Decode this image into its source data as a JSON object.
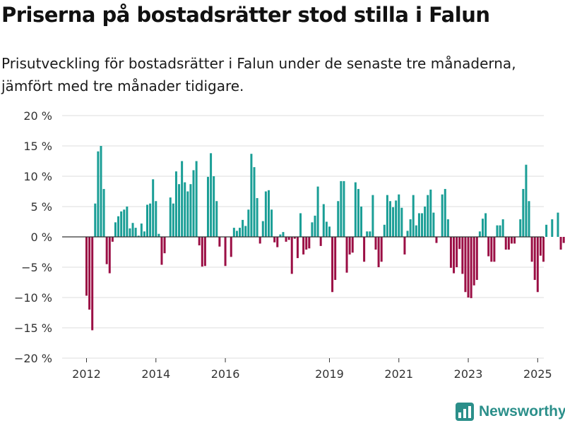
{
  "header": {
    "title": "Priserna på bostadsrätter stod stilla i Falun",
    "subtitle": "Prisutveckling för bostadsrätter i Falun under de senaste tre månaderna, jämfört med tre månader tidigare."
  },
  "brand": {
    "name": "Newsworthy",
    "icon": "newsworthy-logo-icon",
    "color": "#2b8f8a"
  },
  "colors": {
    "positive": "#1a9e96",
    "negative": "#9b0f45",
    "grid": "#dddddd",
    "zero_line": "#333333"
  },
  "chart_data": {
    "type": "bar",
    "title": "Priserna på bostadsrätter stod stilla i Falun",
    "xlabel": "",
    "ylabel": "",
    "ylim": [
      -20,
      20
    ],
    "y_ticks": [
      20,
      15,
      10,
      5,
      0,
      -5,
      -10,
      -15,
      -20
    ],
    "y_tick_labels": [
      "20 %",
      "15 %",
      "10 %",
      "5 %",
      "0 %",
      "−5 %",
      "−10 %",
      "−15 %",
      "−20 %"
    ],
    "x_tick_labels": [
      "2012",
      "2014",
      "2016",
      "2019",
      "2021",
      "2023",
      "2025"
    ],
    "x_tick_years": [
      2012,
      2014,
      2016,
      2019,
      2021,
      2023,
      2025
    ],
    "start": "2012-01",
    "frequency": "monthly",
    "annotation": {
      "label": "0 %",
      "value": 0
    },
    "values": [
      -9.7,
      -12,
      -15.4,
      5.5,
      14.1,
      15,
      7.9,
      -4.5,
      -6,
      -0.8,
      2.4,
      3.4,
      4.2,
      4.5,
      5,
      1.4,
      2.3,
      1.5,
      0.2,
      2.2,
      0.9,
      5.3,
      5.5,
      9.5,
      5.9,
      0.5,
      -4.6,
      -2.7,
      0,
      6.5,
      5.5,
      10.8,
      8.7,
      12.5,
      9,
      7.5,
      8.7,
      11,
      12.5,
      -1.4,
      -4.9,
      -4.8,
      9.9,
      13.8,
      10,
      5.9,
      -1.6,
      0,
      -4.8,
      0,
      -3.3,
      1.5,
      1,
      1.5,
      2.8,
      1.8,
      4.5,
      13.7,
      11.5,
      6.4,
      -1.1,
      2.6,
      7.5,
      7.7,
      4.5,
      -0.9,
      -1.7,
      0.4,
      0.8,
      -0.8,
      -0.5,
      -6.1,
      -0.3,
      -3.5,
      3.9,
      -2.9,
      -2.1,
      -1.9,
      2.4,
      3.5,
      8.3,
      -1.5,
      5.4,
      2.5,
      1.7,
      -9.1,
      -7.1,
      5.9,
      9.2,
      9.2,
      -5.9,
      -2.9,
      -2.6,
      9,
      7.9,
      5,
      -4.1,
      0.9,
      0.9,
      6.9,
      -2.1,
      -5,
      -4.1,
      2,
      6.9,
      5.9,
      4.9,
      6,
      7,
      4.8,
      -2.9,
      1,
      2.9,
      6.9,
      1.9,
      3.9,
      3.9,
      5,
      6.9,
      7.8,
      4,
      -1,
      0,
      7,
      7.9,
      2.9,
      -5.1,
      -6,
      -5,
      -2,
      -6.1,
      -9.1,
      -10,
      -10.1,
      -8,
      -7.1,
      0.9,
      3,
      3.9,
      -3.2,
      -4.1,
      -4.1,
      1.9,
      1.9,
      2.9,
      -2.1,
      -2.1,
      -1.1,
      -1.1,
      0,
      2.9,
      7.9,
      11.9,
      5.9,
      -4.1,
      -7.1,
      -9.1,
      -3.1,
      -4.1,
      2,
      0,
      2.9,
      0,
      4,
      -2.1,
      -1,
      -2,
      0
    ]
  }
}
